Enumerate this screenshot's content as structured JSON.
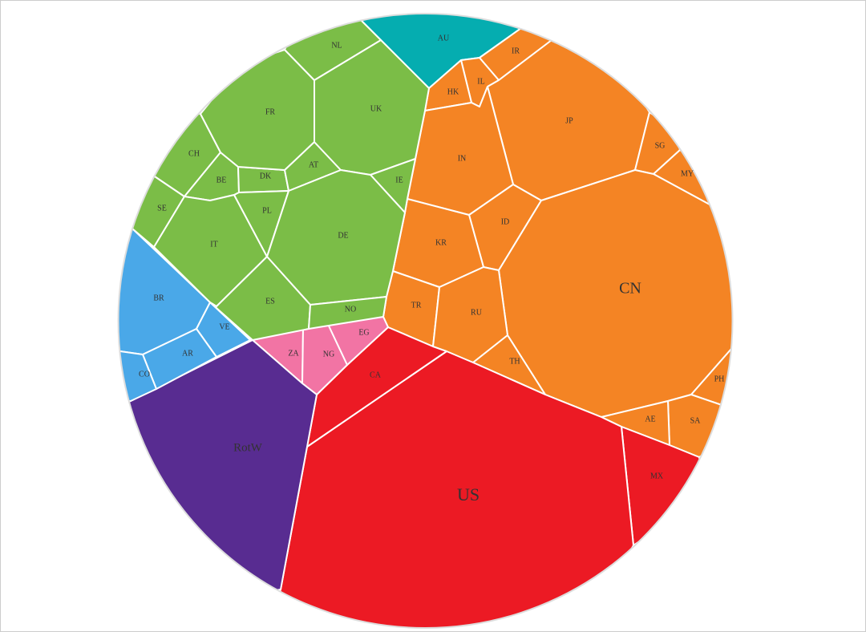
{
  "groups": [
    {
      "color": "#05adb0",
      "cells": [
        {
          "label": "AU"
        }
      ]
    },
    {
      "color": "#f48424",
      "cells": [
        {
          "label": "IR"
        },
        {
          "label": "IL"
        },
        {
          "label": "HK"
        },
        {
          "label": "JP"
        },
        {
          "label": "SG"
        },
        {
          "label": "MY"
        },
        {
          "label": "IN"
        },
        {
          "label": "ID"
        },
        {
          "label": "KR"
        },
        {
          "label": "CN"
        },
        {
          "label": "TR"
        },
        {
          "label": "RU"
        },
        {
          "label": "TH"
        },
        {
          "label": "PH"
        },
        {
          "label": "SA"
        },
        {
          "label": "AE"
        }
      ]
    },
    {
      "color": "#ec1a24",
      "cells": [
        {
          "label": "MX"
        },
        {
          "label": "US"
        },
        {
          "label": "CA"
        }
      ]
    },
    {
      "color": "#f274a4",
      "cells": [
        {
          "label": "ZA"
        },
        {
          "label": "NG"
        },
        {
          "label": "EG"
        }
      ]
    },
    {
      "color": "#582c91",
      "cells": [
        {
          "label": "RotW"
        }
      ]
    },
    {
      "color": "#4aa8e8",
      "cells": [
        {
          "label": "BR"
        },
        {
          "label": "VE"
        },
        {
          "label": "AR"
        },
        {
          "label": "CO"
        }
      ]
    },
    {
      "color": "#7bbd47",
      "cells": [
        {
          "label": "SE"
        },
        {
          "label": "CH"
        },
        {
          "label": "BE"
        },
        {
          "label": "IT"
        },
        {
          "label": "DK"
        },
        {
          "label": "PL"
        },
        {
          "label": "AT"
        },
        {
          "label": "FR"
        },
        {
          "label": "NL"
        },
        {
          "label": "UK"
        },
        {
          "label": "IE"
        },
        {
          "label": "DE"
        },
        {
          "label": "ES"
        },
        {
          "label": "NO"
        }
      ]
    }
  ]
}
